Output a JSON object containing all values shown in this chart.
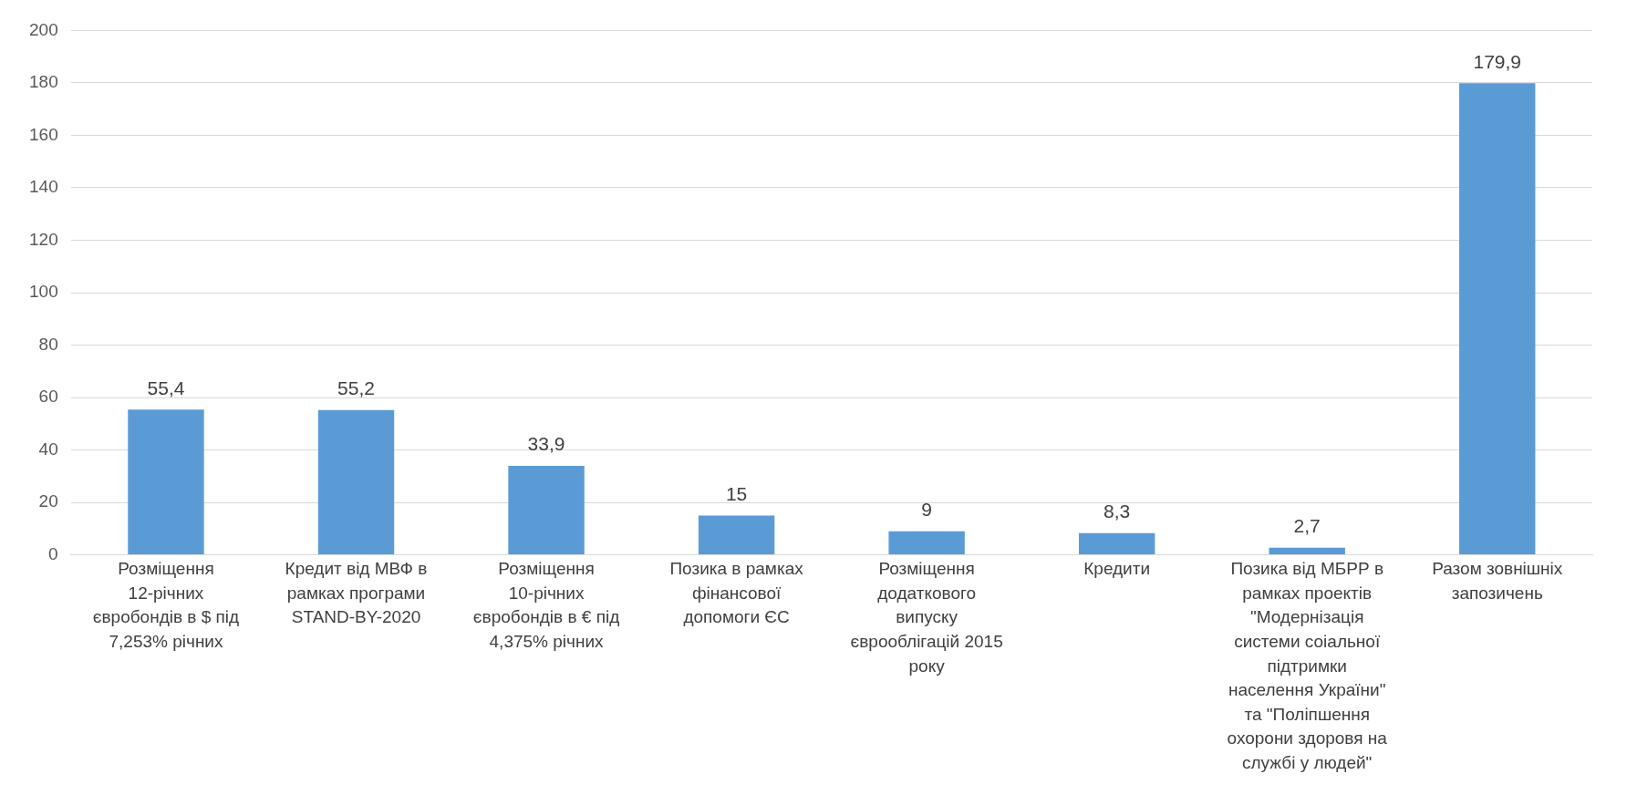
{
  "chart_data": {
    "type": "bar",
    "categories": [
      "Розміщення 12-річних євробондів в $ під 7,253% річних",
      "Кредит від МВФ в рамках програми STAND-BY-2020",
      "Розміщення 10-річних євробондів в € під 4,375% річних",
      "Позика в рамках фінансової допомоги ЄС",
      "Розміщення додаткового випуску єврооблігацій 2015 року",
      "Кредити",
      "Позика від МБРР в рамках проектів \"Модернізація системи соіальної підтримки населення України\" та \"Поліпшення охорони здоровя на службі у людей\"",
      "Разом зовнішніх запозичень"
    ],
    "values": [
      55.4,
      55.2,
      33.9,
      15,
      9,
      8.3,
      2.7,
      179.9
    ],
    "color": "#5b9bd5",
    "ylim": [
      0,
      200
    ],
    "yticks": [
      0,
      20,
      40,
      60,
      80,
      100,
      120,
      140,
      160,
      180,
      200
    ],
    "grid": "y",
    "value_labels": [
      "55,4",
      "55,2",
      "33,9",
      "15",
      "9",
      "8,3",
      "2,7",
      "179,9"
    ]
  }
}
